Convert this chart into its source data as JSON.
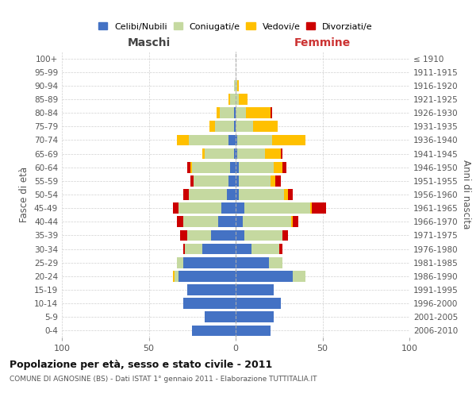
{
  "age_groups": [
    "0-4",
    "5-9",
    "10-14",
    "15-19",
    "20-24",
    "25-29",
    "30-34",
    "35-39",
    "40-44",
    "45-49",
    "50-54",
    "55-59",
    "60-64",
    "65-69",
    "70-74",
    "75-79",
    "80-84",
    "85-89",
    "90-94",
    "95-99",
    "100+"
  ],
  "birth_years": [
    "2006-2010",
    "2001-2005",
    "1996-2000",
    "1991-1995",
    "1986-1990",
    "1981-1985",
    "1976-1980",
    "1971-1975",
    "1966-1970",
    "1961-1965",
    "1956-1960",
    "1951-1955",
    "1946-1950",
    "1941-1945",
    "1936-1940",
    "1931-1935",
    "1926-1930",
    "1921-1925",
    "1916-1920",
    "1911-1915",
    "≤ 1910"
  ],
  "male": {
    "celibi": [
      25,
      18,
      30,
      28,
      33,
      30,
      19,
      14,
      10,
      8,
      5,
      4,
      3,
      1,
      4,
      1,
      1,
      0,
      0,
      0,
      0
    ],
    "coniugati": [
      0,
      0,
      0,
      0,
      2,
      4,
      10,
      14,
      20,
      25,
      22,
      20,
      22,
      17,
      23,
      11,
      8,
      3,
      1,
      0,
      0
    ],
    "vedovi": [
      0,
      0,
      0,
      0,
      1,
      0,
      0,
      0,
      0,
      0,
      0,
      0,
      1,
      1,
      7,
      3,
      2,
      1,
      0,
      0,
      0
    ],
    "divorziati": [
      0,
      0,
      0,
      0,
      0,
      0,
      1,
      4,
      4,
      3,
      3,
      2,
      2,
      0,
      0,
      0,
      0,
      0,
      0,
      0,
      0
    ]
  },
  "female": {
    "nubili": [
      20,
      22,
      26,
      22,
      33,
      19,
      9,
      5,
      4,
      5,
      2,
      2,
      2,
      1,
      1,
      0,
      0,
      0,
      0,
      0,
      0
    ],
    "coniugate": [
      0,
      0,
      0,
      0,
      7,
      8,
      16,
      22,
      28,
      38,
      26,
      18,
      20,
      16,
      20,
      10,
      6,
      2,
      1,
      0,
      0
    ],
    "vedove": [
      0,
      0,
      0,
      0,
      0,
      0,
      0,
      0,
      1,
      1,
      2,
      3,
      5,
      9,
      19,
      14,
      14,
      5,
      1,
      0,
      0
    ],
    "divorziate": [
      0,
      0,
      0,
      0,
      0,
      0,
      2,
      3,
      3,
      8,
      3,
      3,
      2,
      1,
      0,
      0,
      1,
      0,
      0,
      0,
      0
    ]
  },
  "colors": {
    "celibi": "#4472c4",
    "coniugati": "#c5d9a0",
    "vedovi": "#ffc000",
    "divorziati": "#cc0000"
  },
  "xlim": 100,
  "title": "Popolazione per età, sesso e stato civile - 2011",
  "subtitle": "COMUNE DI AGNOSINE (BS) - Dati ISTAT 1° gennaio 2011 - Elaborazione TUTTITALIA.IT",
  "xlabel_left": "Maschi",
  "xlabel_right": "Femmine",
  "ylabel_left": "Fasce di età",
  "ylabel_right": "Anni di nascita",
  "legend_labels": [
    "Celibi/Nubili",
    "Coniugati/e",
    "Vedovi/e",
    "Divorziati/e"
  ],
  "bg_color": "#ffffff",
  "grid_color": "#cccccc"
}
